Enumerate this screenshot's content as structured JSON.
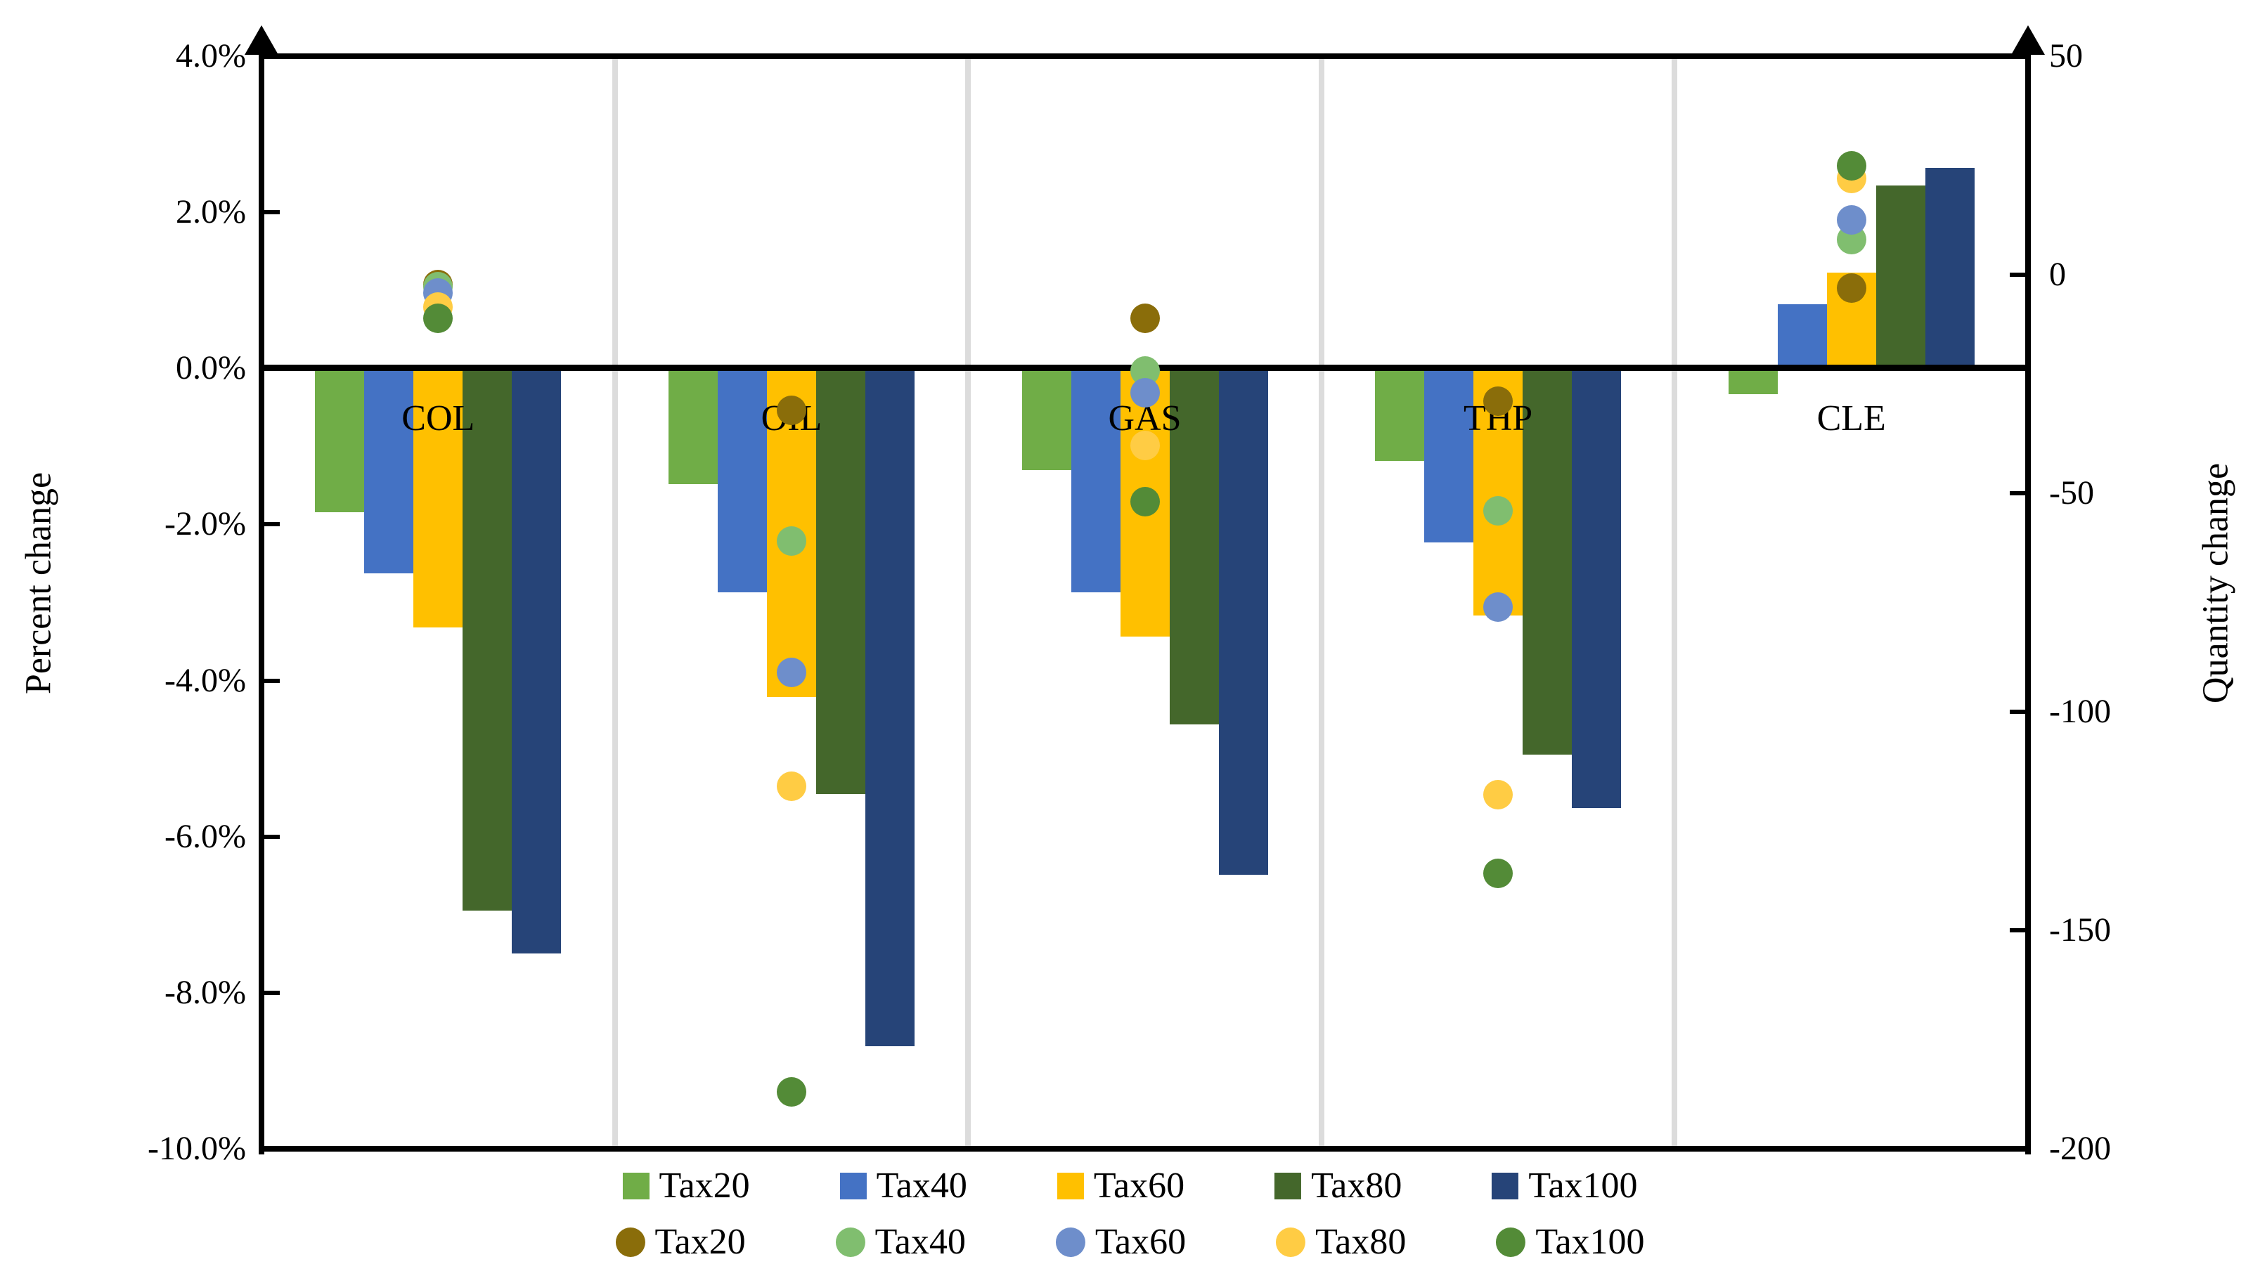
{
  "chart_data": {
    "type": "bar",
    "subtype": "dual-axis bar + scatter overlay",
    "categories": [
      "COL",
      "OIL",
      "GAS",
      "THP",
      "CLE"
    ],
    "bar_series": [
      {
        "name": "Tax20",
        "color": "#70AD47",
        "axis": "left",
        "values_percent": [
          -1.84,
          -1.48,
          -1.3,
          -1.19,
          -0.33
        ]
      },
      {
        "name": "Tax40",
        "color": "#4472C4",
        "axis": "left",
        "values_percent": [
          -2.63,
          -2.87,
          -2.87,
          -2.23,
          0.82
        ]
      },
      {
        "name": "Tax60",
        "color": "#FFC000",
        "axis": "left",
        "values_percent": [
          -3.32,
          -4.21,
          -3.44,
          -3.17,
          1.23
        ]
      },
      {
        "name": "Tax80",
        "color": "#44672B",
        "axis": "left",
        "values_percent": [
          -6.95,
          -5.45,
          -4.56,
          -4.95,
          2.34
        ]
      },
      {
        "name": "Tax100",
        "color": "#264478",
        "axis": "left",
        "values_percent": [
          -7.5,
          -8.69,
          -6.49,
          -5.63,
          2.57
        ]
      }
    ],
    "dot_series": [
      {
        "name": "Tax20",
        "color": "#8A6D0A",
        "axis": "right",
        "values_quantity": [
          -2.3,
          -31,
          -10,
          -29,
          -3
        ]
      },
      {
        "name": "Tax40",
        "color": "#80BE6F",
        "axis": "right",
        "values_quantity": [
          -2.7,
          -61,
          -22,
          -54,
          8
        ]
      },
      {
        "name": "Tax60",
        "color": "#6E8ECB",
        "axis": "right",
        "values_quantity": [
          -4.2,
          -91,
          -27,
          -76,
          12.5
        ]
      },
      {
        "name": "Tax80",
        "color": "#FFCC44",
        "axis": "right",
        "values_quantity": [
          -7.4,
          -117,
          -39,
          -119,
          22
        ]
      },
      {
        "name": "Tax100",
        "color": "#538B37",
        "axis": "right",
        "values_quantity": [
          -10,
          -187,
          -52,
          -137,
          25
        ]
      }
    ],
    "left_axis": {
      "title": "Percent change",
      "min": -10,
      "max": 4,
      "tick_labels": [
        "4.0%",
        "2.0%",
        "0.0%",
        "-2.0%",
        "-4.0%",
        "-6.0%",
        "-8.0%",
        "-10.0%"
      ],
      "tick_values": [
        4,
        2,
        0,
        -2,
        -4,
        -6,
        -8,
        -10
      ]
    },
    "right_axis": {
      "title": "Quantity change",
      "min": -200,
      "max": 50,
      "tick_labels": [
        "50",
        "0",
        "-50",
        "-100",
        "-150",
        "-200"
      ],
      "tick_values": [
        50,
        0,
        -50,
        -100,
        -150,
        -200
      ]
    },
    "grid": {
      "vertical_group_separators": true,
      "zero_line": true
    },
    "legend": {
      "position": "bottom",
      "rows": 2,
      "row1_marker": "square",
      "row2_marker": "circle"
    }
  }
}
